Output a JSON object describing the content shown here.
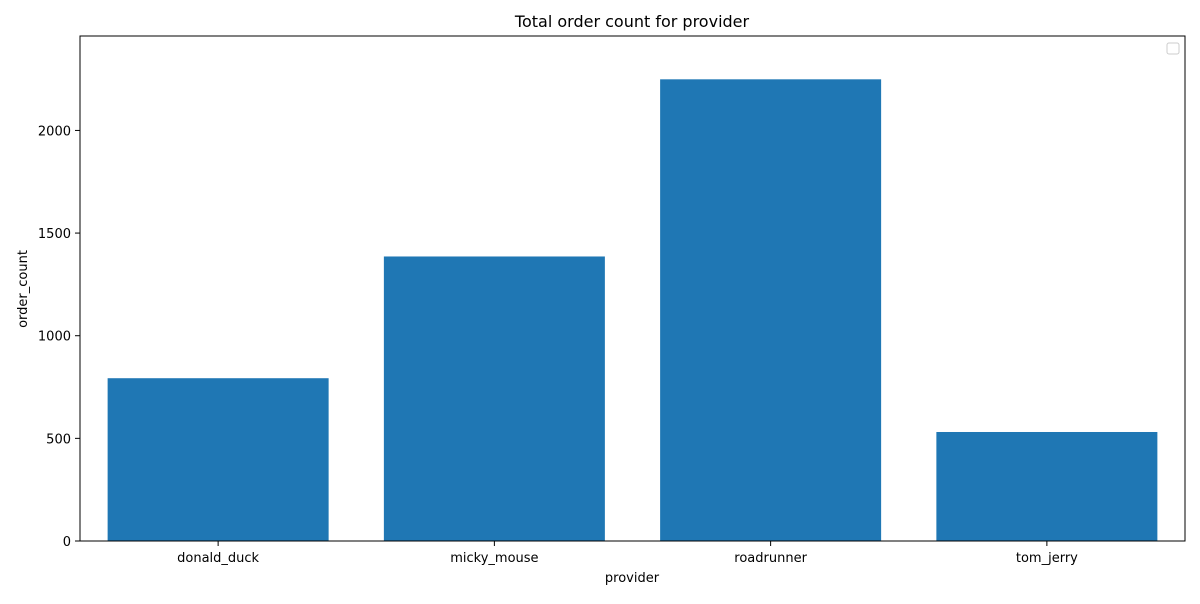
{
  "chart_data": {
    "type": "bar",
    "title": "Total order count for provider",
    "xlabel": "provider",
    "ylabel": "order_count",
    "categories": [
      "donald_duck",
      "micky_mouse",
      "roadrunner",
      "tom_jerry"
    ],
    "values": [
      793,
      1386,
      2249,
      531
    ],
    "ylim": [
      0,
      2460
    ],
    "yticks": [
      0,
      500,
      1000,
      1500,
      2000
    ],
    "grid": false,
    "legend": "top-right",
    "colors": {
      "bar": "#1f77b4",
      "axis": "#000000",
      "legend_border": "#cccccc"
    }
  }
}
